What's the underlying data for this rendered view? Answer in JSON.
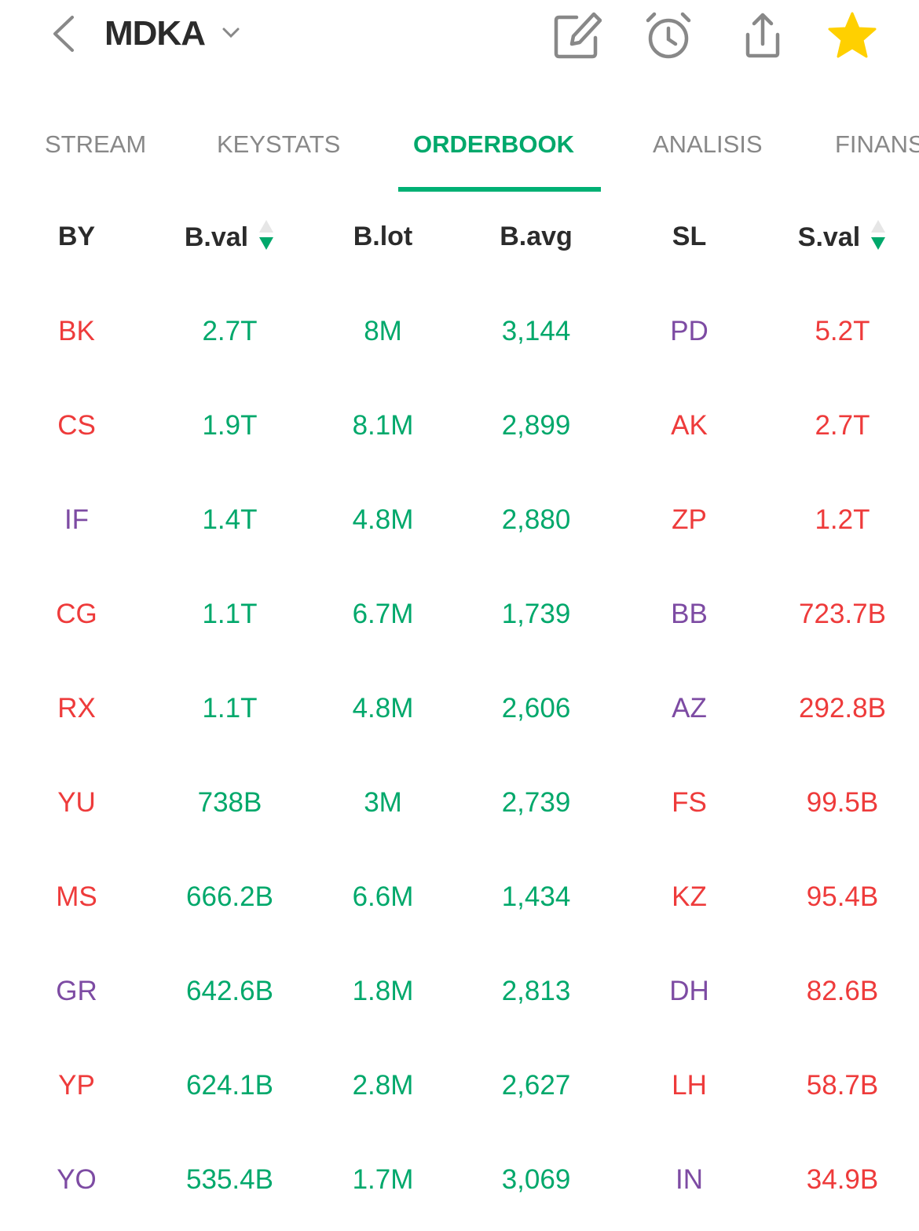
{
  "header": {
    "ticker": "MDKA",
    "icons": [
      "back-icon",
      "chevron-down-icon",
      "edit-icon",
      "alarm-icon",
      "share-icon",
      "star-icon"
    ]
  },
  "tabs": [
    "STREAM",
    "KEYSTATS",
    "ORDERBOOK",
    "ANALISIS",
    "FINANS"
  ],
  "active_tab": "ORDERBOOK",
  "colors": {
    "green": "#00a86b",
    "red": "#ee3b3b",
    "purple": "#7d4ba3",
    "star": "#ffd000",
    "text": "#2b2b2b"
  },
  "columns": [
    "BY",
    "B.val",
    "B.lot",
    "B.avg",
    "SL",
    "S.val"
  ],
  "sorted_columns": [
    "B.val",
    "S.val"
  ],
  "rows": [
    {
      "by": "BK",
      "by_color": "red",
      "bval": "2.7T",
      "blot": "8M",
      "bavg": "3,144",
      "sl": "PD",
      "sl_color": "purple",
      "sval": "5.2T"
    },
    {
      "by": "CS",
      "by_color": "red",
      "bval": "1.9T",
      "blot": "8.1M",
      "bavg": "2,899",
      "sl": "AK",
      "sl_color": "red",
      "sval": "2.7T"
    },
    {
      "by": "IF",
      "by_color": "purple",
      "bval": "1.4T",
      "blot": "4.8M",
      "bavg": "2,880",
      "sl": "ZP",
      "sl_color": "red",
      "sval": "1.2T"
    },
    {
      "by": "CG",
      "by_color": "red",
      "bval": "1.1T",
      "blot": "6.7M",
      "bavg": "1,739",
      "sl": "BB",
      "sl_color": "purple",
      "sval": "723.7B"
    },
    {
      "by": "RX",
      "by_color": "red",
      "bval": "1.1T",
      "blot": "4.8M",
      "bavg": "2,606",
      "sl": "AZ",
      "sl_color": "purple",
      "sval": "292.8B"
    },
    {
      "by": "YU",
      "by_color": "red",
      "bval": "738B",
      "blot": "3M",
      "bavg": "2,739",
      "sl": "FS",
      "sl_color": "red",
      "sval": "99.5B"
    },
    {
      "by": "MS",
      "by_color": "red",
      "bval": "666.2B",
      "blot": "6.6M",
      "bavg": "1,434",
      "sl": "KZ",
      "sl_color": "red",
      "sval": "95.4B"
    },
    {
      "by": "GR",
      "by_color": "purple",
      "bval": "642.6B",
      "blot": "1.8M",
      "bavg": "2,813",
      "sl": "DH",
      "sl_color": "purple",
      "sval": "82.6B"
    },
    {
      "by": "YP",
      "by_color": "red",
      "bval": "624.1B",
      "blot": "2.8M",
      "bavg": "2,627",
      "sl": "LH",
      "sl_color": "red",
      "sval": "58.7B"
    },
    {
      "by": "YO",
      "by_color": "purple",
      "bval": "535.4B",
      "blot": "1.7M",
      "bavg": "3,069",
      "sl": "IN",
      "sl_color": "purple",
      "sval": "34.9B"
    }
  ]
}
